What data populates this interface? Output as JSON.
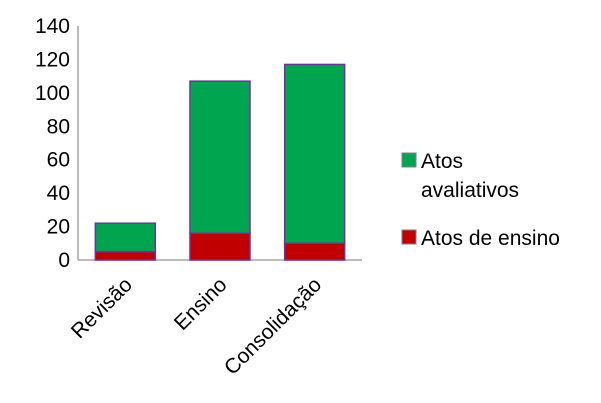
{
  "chart_data": {
    "type": "bar",
    "stacked": true,
    "title": "",
    "xlabel": "",
    "ylabel": "",
    "categories": [
      "Revisão",
      "Ensino",
      "Consolidação"
    ],
    "ylim": [
      0,
      140
    ],
    "yticks": [
      0,
      20,
      40,
      60,
      80,
      100,
      120,
      140
    ],
    "grid": false,
    "legend_position": "right",
    "series": [
      {
        "name": "Atos de ensino",
        "color": "#c00000",
        "values": [
          5,
          16,
          10
        ]
      },
      {
        "name": "Atos avaliativos",
        "color": "#00a550",
        "values": [
          17,
          91,
          107
        ]
      }
    ],
    "legend": [
      {
        "lines": [
          "Atos",
          "avaliativos"
        ],
        "color": "#00a550"
      },
      {
        "lines": [
          "Atos de ensino"
        ],
        "color": "#c00000"
      }
    ],
    "bar_outline_color": "#7030a0"
  }
}
